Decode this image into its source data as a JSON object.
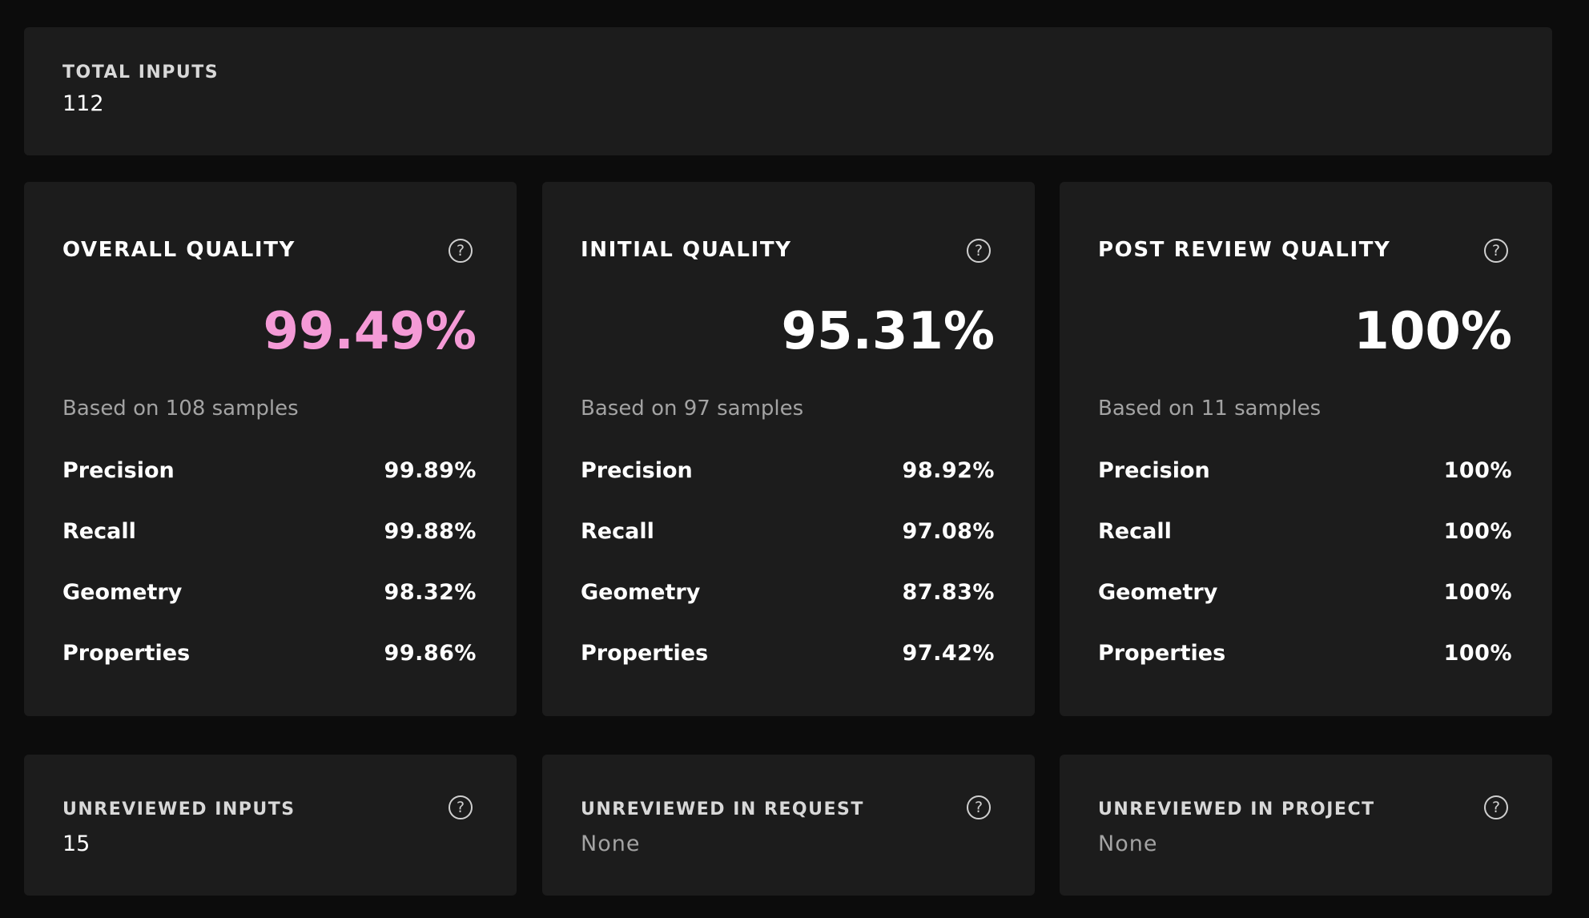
{
  "total_inputs": {
    "label": "TOTAL INPUTS",
    "value": "112"
  },
  "quality_cards": [
    {
      "title": "OVERALL QUALITY",
      "help_icon": "question-circle-icon",
      "percentage": "99.49%",
      "percentage_color": "#f49ad6",
      "based_on": "Based on 108 samples",
      "metrics": [
        {
          "name": "Precision",
          "value": "99.89%"
        },
        {
          "name": "Recall",
          "value": "99.88%"
        },
        {
          "name": "Geometry",
          "value": "98.32%"
        },
        {
          "name": "Properties",
          "value": "99.86%"
        }
      ]
    },
    {
      "title": "INITIAL QUALITY",
      "help_icon": "question-circle-icon",
      "percentage": "95.31%",
      "percentage_color": "#ffffff",
      "based_on": "Based on 97 samples",
      "metrics": [
        {
          "name": "Precision",
          "value": "98.92%"
        },
        {
          "name": "Recall",
          "value": "97.08%"
        },
        {
          "name": "Geometry",
          "value": "87.83%"
        },
        {
          "name": "Properties",
          "value": "97.42%"
        }
      ]
    },
    {
      "title": "POST REVIEW QUALITY",
      "help_icon": "question-circle-icon",
      "percentage": "100%",
      "percentage_color": "#ffffff",
      "based_on": "Based on 11 samples",
      "metrics": [
        {
          "name": "Precision",
          "value": "100%"
        },
        {
          "name": "Recall",
          "value": "100%"
        },
        {
          "name": "Geometry",
          "value": "100%"
        },
        {
          "name": "Properties",
          "value": "100%"
        }
      ]
    }
  ],
  "unreviewed_cards": [
    {
      "title": "UNREVIEWED INPUTS",
      "value": "15",
      "help_icon": "question-circle-icon"
    },
    {
      "title": "UNREVIEWED IN REQUEST",
      "value": "None",
      "help_icon": "question-circle-icon"
    },
    {
      "title": "UNREVIEWED IN PROJECT",
      "value": "None",
      "help_icon": "question-circle-icon"
    }
  ],
  "help_glyph": "?"
}
